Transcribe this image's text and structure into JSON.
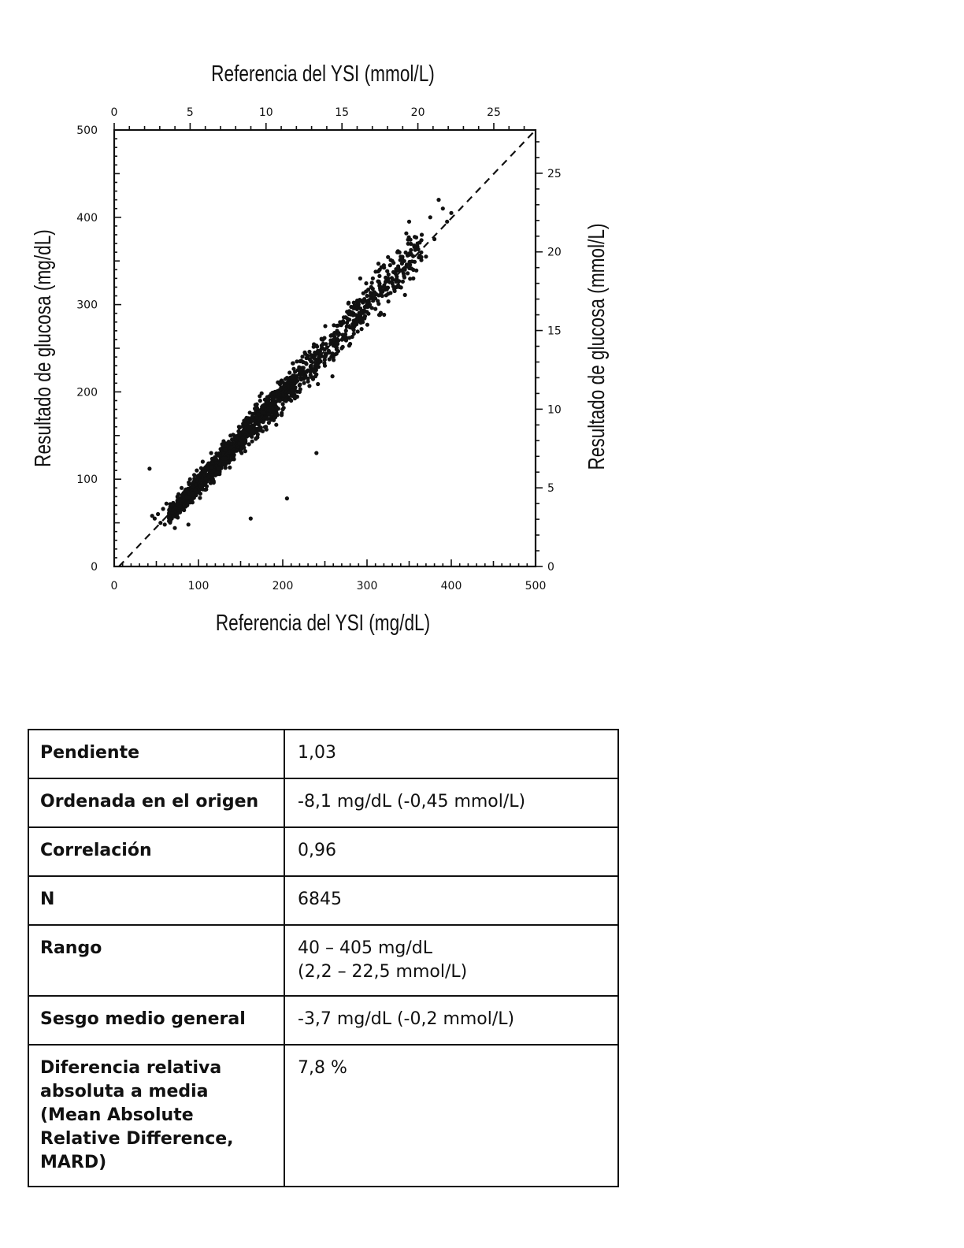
{
  "chart_data": {
    "type": "scatter",
    "title": "",
    "xlabel": "Referencia del YSI (mg/dL)",
    "ylabel": "Resultado de glucosa (mg/dL)",
    "x2label": "Referencia del YSI (mmol/L)",
    "y2label": "Resultado de glucosa (mmol/L)",
    "xlim": [
      0,
      500
    ],
    "ylim": [
      0,
      500
    ],
    "x2lim": [
      0,
      27.75
    ],
    "y2lim": [
      0,
      27.75
    ],
    "x_ticks": [
      "0",
      "100",
      "200",
      "300",
      "400",
      "500"
    ],
    "y_ticks": [
      "0",
      "100",
      "200",
      "300",
      "400",
      "500"
    ],
    "x2_ticks": [
      "0",
      "5",
      "10",
      "15",
      "20",
      "25"
    ],
    "y2_ticks": [
      "0",
      "5",
      "10",
      "15",
      "20",
      "25"
    ],
    "identity_line": {
      "style": "dashed",
      "from": [
        0,
        0
      ],
      "to": [
        500,
        500
      ]
    },
    "n_points": 6845,
    "trend": {
      "slope": 1.03,
      "intercept": -8.1
    },
    "x_range": [
      40,
      405
    ],
    "grid": false,
    "legend": "none",
    "points": [
      [
        42,
        112
      ],
      [
        45,
        58
      ],
      [
        48,
        55
      ],
      [
        52,
        60
      ],
      [
        55,
        50
      ],
      [
        58,
        66
      ],
      [
        60,
        48
      ],
      [
        62,
        72
      ],
      [
        65,
        52
      ],
      [
        70,
        58
      ],
      [
        72,
        44
      ],
      [
        75,
        80
      ],
      [
        78,
        62
      ],
      [
        80,
        90
      ],
      [
        85,
        70
      ],
      [
        88,
        48
      ],
      [
        90,
        100
      ],
      [
        95,
        85
      ],
      [
        98,
        110
      ],
      [
        100,
        95
      ],
      [
        105,
        120
      ],
      [
        108,
        88
      ],
      [
        110,
        105
      ],
      [
        115,
        130
      ],
      [
        118,
        96
      ],
      [
        120,
        125
      ],
      [
        125,
        110
      ],
      [
        128,
        140
      ],
      [
        130,
        118
      ],
      [
        135,
        135
      ],
      [
        138,
        150
      ],
      [
        140,
        128
      ],
      [
        145,
        145
      ],
      [
        148,
        160
      ],
      [
        150,
        132
      ],
      [
        155,
        150
      ],
      [
        158,
        168
      ],
      [
        160,
        140
      ],
      [
        162,
        55
      ],
      [
        165,
        160
      ],
      [
        168,
        178
      ],
      [
        170,
        148
      ],
      [
        175,
        170
      ],
      [
        178,
        185
      ],
      [
        180,
        160
      ],
      [
        185,
        178
      ],
      [
        188,
        195
      ],
      [
        190,
        170
      ],
      [
        195,
        190
      ],
      [
        198,
        205
      ],
      [
        200,
        180
      ],
      [
        205,
        78
      ],
      [
        205,
        195
      ],
      [
        208,
        215
      ],
      [
        210,
        190
      ],
      [
        215,
        205
      ],
      [
        218,
        225
      ],
      [
        220,
        200
      ],
      [
        225,
        215
      ],
      [
        228,
        232
      ],
      [
        230,
        212
      ],
      [
        235,
        225
      ],
      [
        238,
        245
      ],
      [
        240,
        130
      ],
      [
        240,
        220
      ],
      [
        245,
        235
      ],
      [
        248,
        255
      ],
      [
        250,
        230
      ],
      [
        255,
        245
      ],
      [
        258,
        265
      ],
      [
        260,
        240
      ],
      [
        265,
        255
      ],
      [
        268,
        280
      ],
      [
        270,
        250
      ],
      [
        275,
        270
      ],
      [
        278,
        290
      ],
      [
        280,
        255
      ],
      [
        285,
        275
      ],
      [
        290,
        300
      ],
      [
        292,
        330
      ],
      [
        295,
        280
      ],
      [
        300,
        310
      ],
      [
        305,
        320
      ],
      [
        310,
        295
      ],
      [
        315,
        340
      ],
      [
        318,
        310
      ],
      [
        320,
        345
      ],
      [
        325,
        330
      ],
      [
        330,
        350
      ],
      [
        335,
        320
      ],
      [
        340,
        355
      ],
      [
        345,
        340
      ],
      [
        350,
        395
      ],
      [
        355,
        330
      ],
      [
        360,
        370
      ],
      [
        365,
        380
      ],
      [
        370,
        355
      ],
      [
        375,
        400
      ],
      [
        380,
        375
      ],
      [
        385,
        420
      ],
      [
        390,
        410
      ],
      [
        395,
        395
      ],
      [
        400,
        405
      ]
    ]
  },
  "stats": {
    "rows": [
      {
        "label": "Pendiente",
        "value": "1,03"
      },
      {
        "label": "Ordenada en el origen",
        "value": "-8,1 mg/dL (-0,45 mmol/L)"
      },
      {
        "label": "Correlación",
        "value": "0,96"
      },
      {
        "label": "N",
        "value": "6845"
      },
      {
        "label": "Rango",
        "value_line1": "40 – 405 mg/dL",
        "value_line2": "(2,2 – 22,5 mmol/L)"
      },
      {
        "label": "Sesgo medio general",
        "value": "-3,7 mg/dL (-0,2 mmol/L)"
      },
      {
        "label_lines": [
          "Diferencia relativa",
          "absoluta a media",
          "(Mean Absolute",
          "Relative Difference,",
          "MARD)"
        ],
        "value": "7,8 %"
      }
    ]
  }
}
